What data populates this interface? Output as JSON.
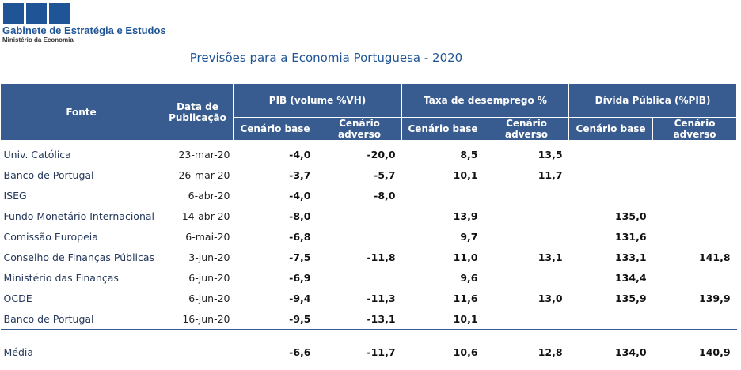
{
  "logo": {
    "name": "Gabinete de Estratégia e Estudos",
    "sub": "Ministério da Economia"
  },
  "title": "Previsões para a Economia Portuguesa - 2020",
  "headers": {
    "fonte": "Fonte",
    "data": "Data de Publicação",
    "pib": "PIB (volume %VH)",
    "desemprego": "Taxa de desemprego %",
    "divida": "Dívida Pública (%PIB)",
    "base": "Cenário base",
    "adverso": "Cenário adverso"
  },
  "rows": [
    {
      "fonte": "Univ. Católica",
      "data": "23-mar-20",
      "pib_b": "-4,0",
      "pib_a": "-20,0",
      "des_b": "8,5",
      "des_a": "13,5",
      "div_b": "",
      "div_a": ""
    },
    {
      "fonte": "Banco de Portugal",
      "data": "26-mar-20",
      "pib_b": "-3,7",
      "pib_a": "-5,7",
      "des_b": "10,1",
      "des_a": "11,7",
      "div_b": "",
      "div_a": ""
    },
    {
      "fonte": "ISEG",
      "data": "6-abr-20",
      "pib_b": "-4,0",
      "pib_a": "-8,0",
      "des_b": "",
      "des_a": "",
      "div_b": "",
      "div_a": ""
    },
    {
      "fonte": "Fundo Monetário Internacional",
      "data": "14-abr-20",
      "pib_b": "-8,0",
      "pib_a": "",
      "des_b": "13,9",
      "des_a": "",
      "div_b": "135,0",
      "div_a": ""
    },
    {
      "fonte": "Comissão Europeia",
      "data": "6-mai-20",
      "pib_b": "-6,8",
      "pib_a": "",
      "des_b": "9,7",
      "des_a": "",
      "div_b": "131,6",
      "div_a": ""
    },
    {
      "fonte": "Conselho de Finanças Públicas",
      "data": "3-jun-20",
      "pib_b": "-7,5",
      "pib_a": "-11,8",
      "des_b": "11,0",
      "des_a": "13,1",
      "div_b": "133,1",
      "div_a": "141,8"
    },
    {
      "fonte": "Ministério das Finanças",
      "data": "6-jun-20",
      "pib_b": "-6,9",
      "pib_a": "",
      "des_b": "9,6",
      "des_a": "",
      "div_b": "134,4",
      "div_a": ""
    },
    {
      "fonte": "OCDE",
      "data": "6-jun-20",
      "pib_b": "-9,4",
      "pib_a": "-11,3",
      "des_b": "11,6",
      "des_a": "13,0",
      "div_b": "135,9",
      "div_a": "139,9"
    },
    {
      "fonte": "Banco de Portugal",
      "data": "16-jun-20",
      "pib_b": "-9,5",
      "pib_a": "-13,1",
      "des_b": "10,1",
      "des_a": "",
      "div_b": "",
      "div_a": ""
    }
  ],
  "media": {
    "fonte": "Média",
    "data": "",
    "pib_b": "-6,6",
    "pib_a": "-11,7",
    "des_b": "10,6",
    "des_a": "12,8",
    "div_b": "134,0",
    "div_a": "140,9"
  }
}
